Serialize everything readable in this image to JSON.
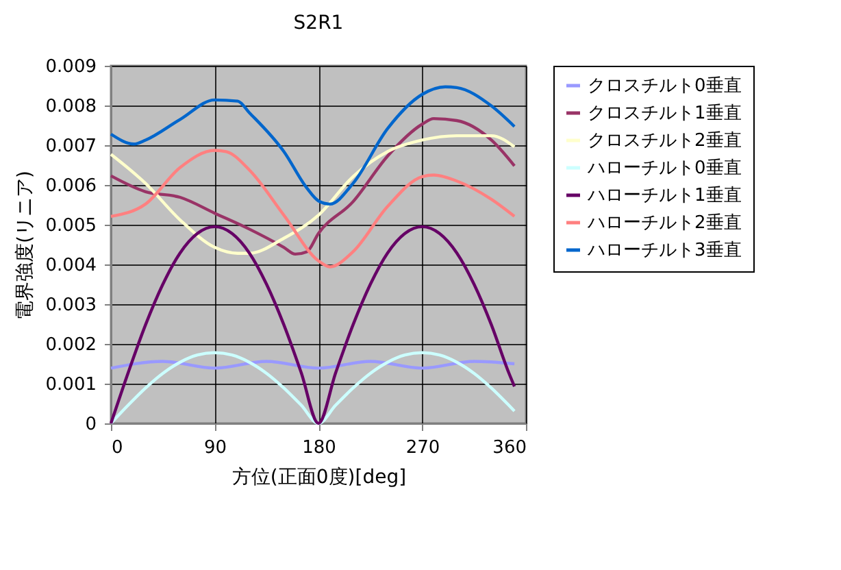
{
  "chart_data": {
    "type": "line",
    "title": "S2R1",
    "xlabel": "方位(正面0度)[deg]",
    "ylabel": "電界強度(リニア)",
    "xlim": [
      0,
      360
    ],
    "xticks": [
      0,
      90,
      180,
      270,
      360
    ],
    "ylim": [
      0,
      0.009
    ],
    "yticks": [
      0,
      0.001,
      0.002,
      0.003,
      0.004,
      0.005,
      0.006,
      0.007,
      0.008,
      0.009
    ],
    "grid": true,
    "legend": "right",
    "marker": "none",
    "line_style": "solid",
    "series": [
      {
        "name": "クロスチルト0垂直",
        "color": "#9999ff",
        "x": [
          0,
          45,
          90,
          135,
          180,
          225,
          270,
          315,
          350
        ],
        "values": [
          0.00139,
          0.00156,
          0.00139,
          0.00156,
          0.00139,
          0.00156,
          0.00139,
          0.00156,
          0.0015
        ]
      },
      {
        "name": "クロスチルト1垂直",
        "color": "#993366",
        "x": [
          0,
          30,
          60,
          90,
          120,
          150,
          160,
          170,
          180,
          210,
          240,
          270,
          280,
          300,
          330,
          350
        ],
        "values": [
          0.00623,
          0.00583,
          0.00569,
          0.00529,
          0.00489,
          0.00443,
          0.00426,
          0.00432,
          0.00478,
          0.00558,
          0.00673,
          0.00753,
          0.00767,
          0.00762,
          0.00713,
          0.00648
        ]
      },
      {
        "name": "クロスチルト2垂直",
        "color": "#ffffcc",
        "x": [
          0,
          30,
          60,
          90,
          110,
          120,
          150,
          180,
          210,
          240,
          270,
          300,
          330,
          350
        ],
        "values": [
          0.00677,
          0.00604,
          0.00512,
          0.00443,
          0.00428,
          0.00428,
          0.00466,
          0.00524,
          0.00621,
          0.00684,
          0.00713,
          0.00724,
          0.00724,
          0.00696
        ]
      },
      {
        "name": "ハローチルト0垂直",
        "color": "#ccffff",
        "x": [
          0,
          15,
          30,
          45,
          60,
          75,
          90,
          105,
          120,
          135,
          150,
          165,
          180,
          195,
          210,
          225,
          240,
          255,
          270,
          285,
          300,
          315,
          330,
          345,
          350
        ],
        "values": [
          0,
          0.00046,
          0.00089,
          0.00126,
          0.00154,
          0.00172,
          0.00178,
          0.00172,
          0.00154,
          0.00126,
          0.00089,
          0.00046,
          0,
          0.00046,
          0.00089,
          0.00126,
          0.00154,
          0.00172,
          0.00178,
          0.00172,
          0.00154,
          0.00126,
          0.00089,
          0.00046,
          0.00031
        ]
      },
      {
        "name": "ハローチルト1垂直",
        "color": "#660066",
        "x": [
          0,
          15,
          30,
          45,
          60,
          75,
          90,
          105,
          120,
          135,
          150,
          165,
          180,
          195,
          210,
          225,
          240,
          255,
          270,
          285,
          300,
          315,
          330,
          345,
          350
        ],
        "values": [
          0,
          0.00128,
          0.00248,
          0.0035,
          0.00429,
          0.00478,
          0.00495,
          0.00478,
          0.00429,
          0.0035,
          0.00248,
          0.00128,
          0,
          0.00128,
          0.00248,
          0.0035,
          0.00429,
          0.00478,
          0.00495,
          0.00478,
          0.00429,
          0.0035,
          0.00248,
          0.00128,
          0.00093
        ]
      },
      {
        "name": "ハローチルト2垂直",
        "color": "#ff8080",
        "x": [
          0,
          30,
          60,
          90,
          100,
          120,
          150,
          180,
          190,
          210,
          240,
          270,
          280,
          300,
          330,
          350
        ],
        "values": [
          0.00521,
          0.00552,
          0.00644,
          0.00687,
          0.00684,
          0.00638,
          0.00524,
          0.00409,
          0.00394,
          0.00432,
          0.00546,
          0.00621,
          0.00625,
          0.0061,
          0.00564,
          0.00521
        ]
      },
      {
        "name": "ハローチルト3垂直",
        "color": "#0066cc",
        "x": [
          0,
          20,
          30,
          60,
          90,
          110,
          120,
          150,
          170,
          180,
          190,
          210,
          240,
          270,
          290,
          300,
          330,
          350
        ],
        "values": [
          0.00728,
          0.00703,
          0.00713,
          0.00765,
          0.00814,
          0.00811,
          0.00782,
          0.00684,
          0.00592,
          0.0056,
          0.00552,
          0.00604,
          0.00742,
          0.00828,
          0.00847,
          0.00845,
          0.00799,
          0.00747
        ]
      }
    ]
  }
}
